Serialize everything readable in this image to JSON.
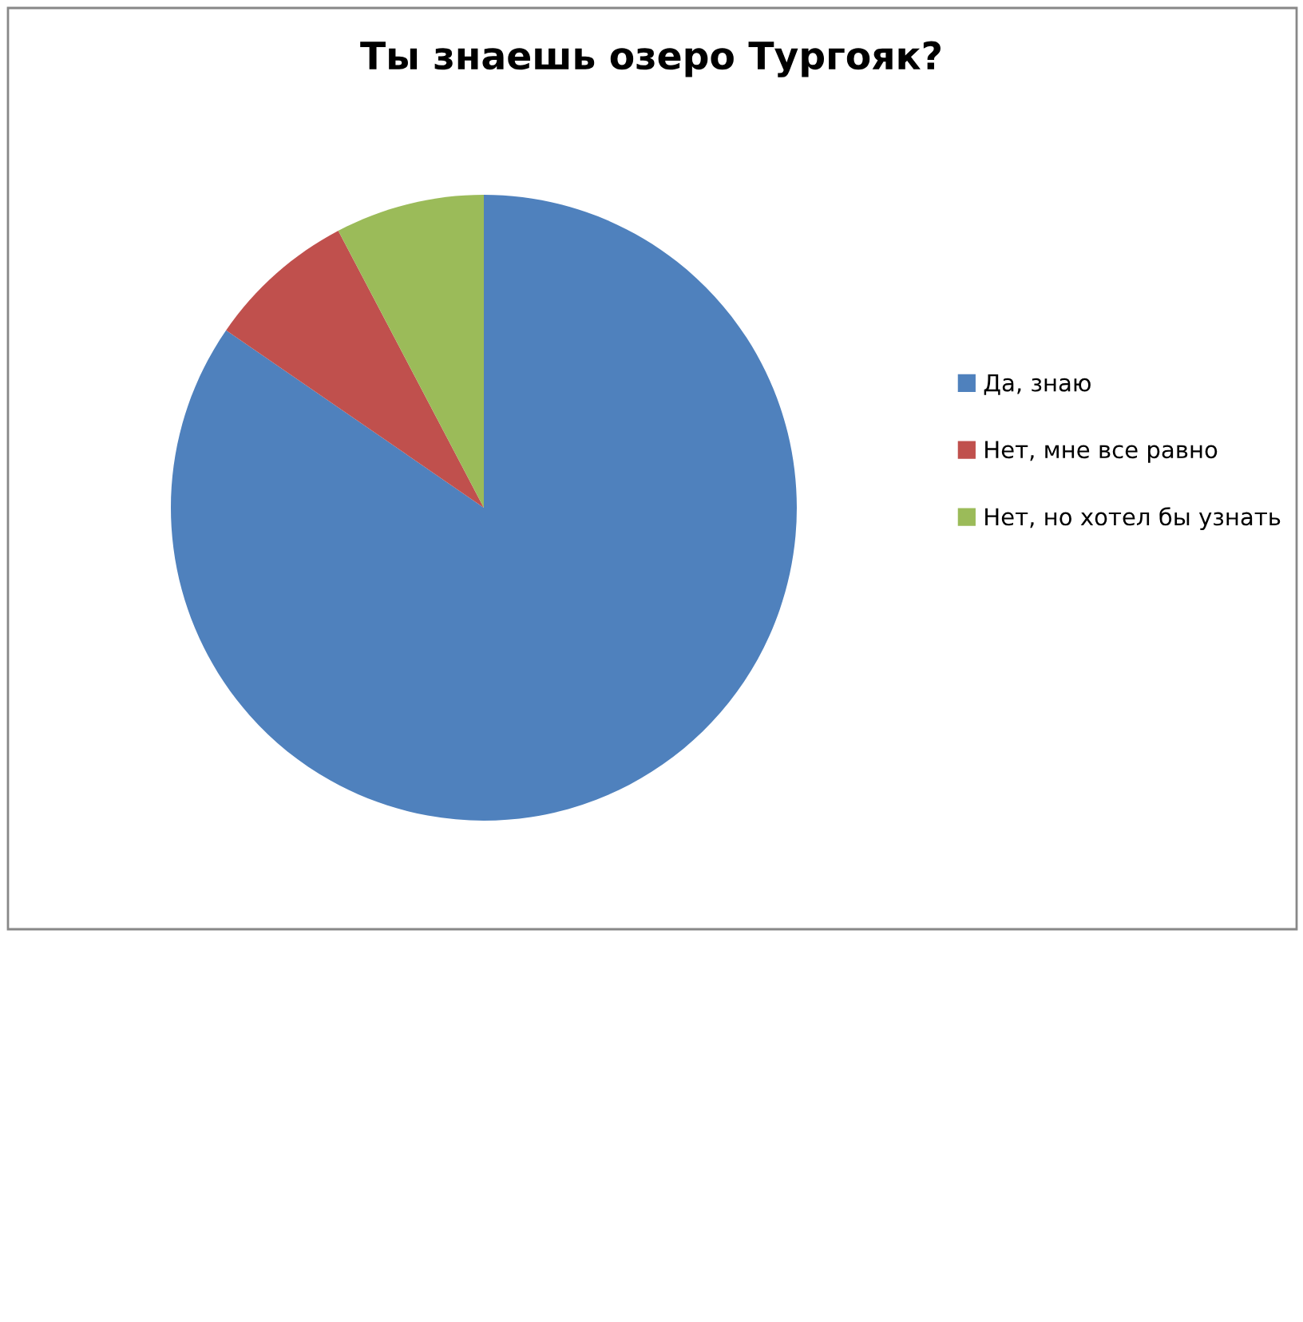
{
  "chart_data": {
    "type": "pie",
    "title": "Ты знаешь озеро Тургояк?",
    "categories": [
      "Да, знаю",
      "Нет, мне все равно",
      "Нет, но хотел бы узнать"
    ],
    "values": [
      84.6,
      7.7,
      7.7
    ],
    "colors": [
      "#4f81bd",
      "#c0504d",
      "#9bbb59"
    ],
    "legend": "right"
  }
}
